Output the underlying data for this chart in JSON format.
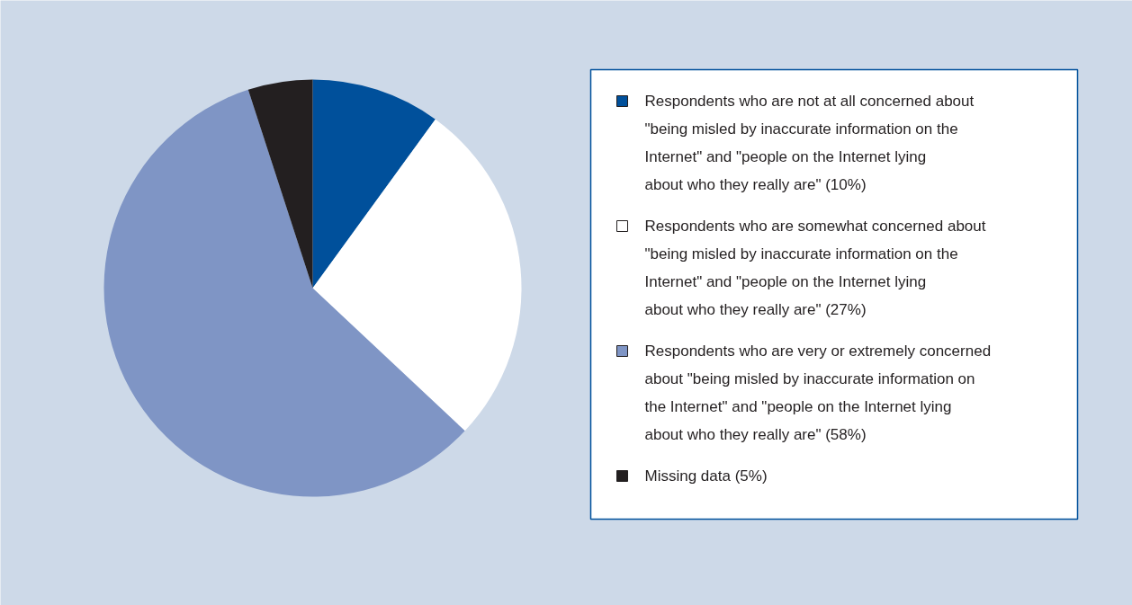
{
  "chart_data": {
    "type": "pie",
    "categories": [
      "Respondents who are not at all concerned about \"being misled by inaccurate information on the Internet\" and \"people on the Internet lying about who they really are\" (10%)",
      "Respondents who are somewhat concerned about \"being misled by inaccurate information on the Internet\" and \"people on the Internet lying about who they really are\" (27%)",
      "Respondents who are very or extremely concerned about \"being misled by inaccurate information on the Internet\" and \"people on the Internet lying about who they really are\" (58%)",
      "Missing data (5%)"
    ],
    "values": [
      10,
      27,
      58,
      5
    ],
    "colors": [
      "#00509b",
      "#ffffff",
      "#7f95c5",
      "#231f20"
    ],
    "legend": "right"
  }
}
